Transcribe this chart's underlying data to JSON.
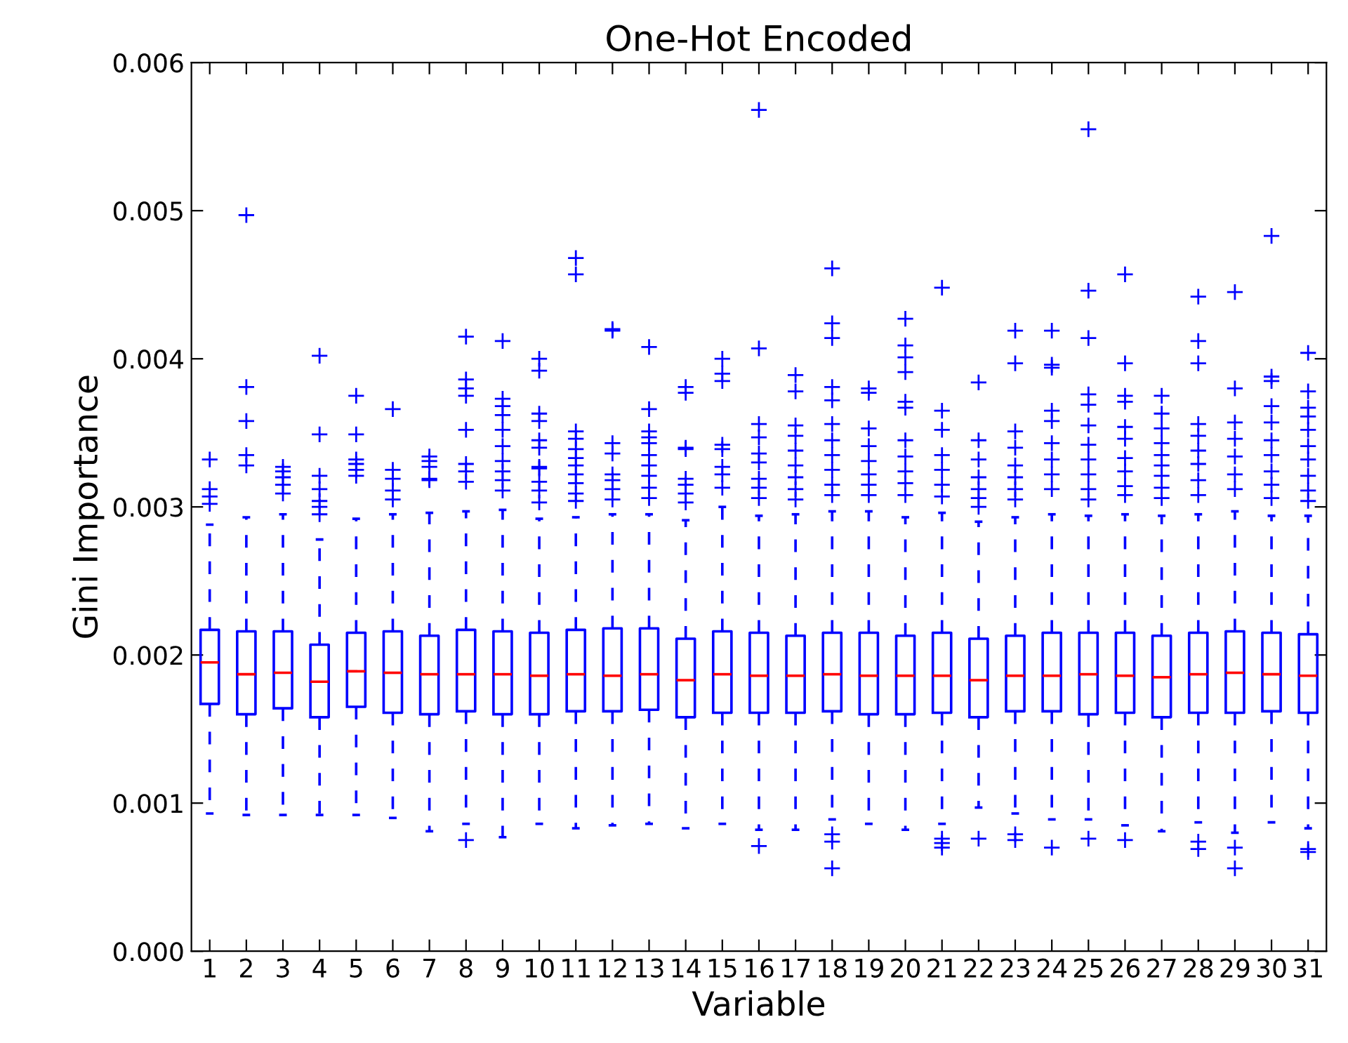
{
  "chart_data": {
    "type": "box",
    "title": "One-Hot Encoded",
    "xlabel": "Variable",
    "ylabel": "Gini Importance",
    "categories": [
      "1",
      "2",
      "3",
      "4",
      "5",
      "6",
      "7",
      "8",
      "9",
      "10",
      "11",
      "12",
      "13",
      "14",
      "15",
      "16",
      "17",
      "18",
      "19",
      "20",
      "21",
      "22",
      "23",
      "24",
      "25",
      "26",
      "27",
      "28",
      "29",
      "30",
      "31"
    ],
    "series": [
      {
        "color": "#0000ff",
        "boxes": [
          {
            "low": 0.00093,
            "q1": 0.00167,
            "median": 0.00195,
            "q3": 0.00217,
            "high": 0.00288,
            "outliers": [
              0.00332,
              0.00312,
              0.00307,
              0.00302
            ]
          },
          {
            "low": 0.00092,
            "q1": 0.0016,
            "median": 0.00187,
            "q3": 0.00216,
            "high": 0.00293,
            "outliers": [
              0.00497,
              0.00381,
              0.00358,
              0.00335,
              0.00328
            ]
          },
          {
            "low": 0.00092,
            "q1": 0.00164,
            "median": 0.00188,
            "q3": 0.00216,
            "high": 0.00295,
            "outliers": [
              0.00327,
              0.00324,
              0.0032,
              0.00315,
              0.00309
            ]
          },
          {
            "low": 0.00092,
            "q1": 0.00158,
            "median": 0.00182,
            "q3": 0.00207,
            "high": 0.00278,
            "outliers": [
              0.00402,
              0.00349,
              0.00321,
              0.00312,
              0.00304,
              0.003,
              0.00295
            ]
          },
          {
            "low": 0.00092,
            "q1": 0.00165,
            "median": 0.00189,
            "q3": 0.00215,
            "high": 0.00292,
            "outliers": [
              0.00375,
              0.00349,
              0.00332,
              0.00329,
              0.00325,
              0.00321
            ]
          },
          {
            "low": 0.0009,
            "q1": 0.00161,
            "median": 0.00188,
            "q3": 0.00216,
            "high": 0.00295,
            "outliers": [
              0.00366,
              0.00325,
              0.00319,
              0.00311,
              0.00305
            ]
          },
          {
            "low": 0.00081,
            "q1": 0.0016,
            "median": 0.00187,
            "q3": 0.00213,
            "high": 0.00296,
            "outliers": [
              0.00334,
              0.00331,
              0.00327,
              0.00319,
              0.00318
            ]
          },
          {
            "low": 0.00086,
            "q1": 0.00162,
            "median": 0.00187,
            "q3": 0.00217,
            "high": 0.00297,
            "outliers": [
              0.00415,
              0.00386,
              0.0038,
              0.00375,
              0.00352,
              0.00329,
              0.00324,
              0.00317,
              0.00075
            ]
          },
          {
            "low": 0.00077,
            "q1": 0.0016,
            "median": 0.00187,
            "q3": 0.00216,
            "high": 0.00298,
            "outliers": [
              0.00412,
              0.00373,
              0.00368,
              0.00362,
              0.00352,
              0.00341,
              0.00331,
              0.00324,
              0.00318,
              0.00311
            ]
          },
          {
            "low": 0.00086,
            "q1": 0.0016,
            "median": 0.00186,
            "q3": 0.00215,
            "high": 0.00292,
            "outliers": [
              0.004,
              0.00392,
              0.00363,
              0.00358,
              0.00345,
              0.0034,
              0.00327,
              0.00326,
              0.00317,
              0.00311,
              0.00303
            ]
          },
          {
            "low": 0.00083,
            "q1": 0.00162,
            "median": 0.00187,
            "q3": 0.00217,
            "high": 0.00293,
            "outliers": [
              0.00468,
              0.00457,
              0.00351,
              0.00346,
              0.00339,
              0.00333,
              0.00328,
              0.00322,
              0.00316,
              0.00309,
              0.00304
            ]
          },
          {
            "low": 0.00085,
            "q1": 0.00162,
            "median": 0.00186,
            "q3": 0.00218,
            "high": 0.00295,
            "outliers": [
              0.0042,
              0.00419,
              0.00343,
              0.00336,
              0.00322,
              0.00318,
              0.00312,
              0.00305
            ]
          },
          {
            "low": 0.00086,
            "q1": 0.00163,
            "median": 0.00187,
            "q3": 0.00218,
            "high": 0.00295,
            "outliers": [
              0.00408,
              0.00366,
              0.00351,
              0.00347,
              0.00343,
              0.00335,
              0.00328,
              0.00321,
              0.00313,
              0.00306
            ]
          },
          {
            "low": 0.00083,
            "q1": 0.00158,
            "median": 0.00183,
            "q3": 0.00211,
            "high": 0.00291,
            "outliers": [
              0.00381,
              0.00377,
              0.0034,
              0.00339,
              0.00319,
              0.00315,
              0.00309,
              0.00303
            ]
          },
          {
            "low": 0.00086,
            "q1": 0.00161,
            "median": 0.00187,
            "q3": 0.00216,
            "high": 0.003,
            "outliers": [
              0.004,
              0.0039,
              0.00385,
              0.00342,
              0.00339,
              0.00327,
              0.00322,
              0.00313
            ]
          },
          {
            "low": 0.00082,
            "q1": 0.00161,
            "median": 0.00186,
            "q3": 0.00215,
            "high": 0.00294,
            "outliers": [
              0.00568,
              0.00407,
              0.00356,
              0.00347,
              0.00336,
              0.0033,
              0.00319,
              0.00313,
              0.00306,
              0.00071
            ]
          },
          {
            "low": 0.00082,
            "q1": 0.00161,
            "median": 0.00186,
            "q3": 0.00213,
            "high": 0.00295,
            "outliers": [
              0.00389,
              0.00378,
              0.00355,
              0.00348,
              0.00338,
              0.00328,
              0.0032,
              0.00312,
              0.00305
            ]
          },
          {
            "low": 0.00089,
            "q1": 0.00162,
            "median": 0.00187,
            "q3": 0.00215,
            "high": 0.00297,
            "outliers": [
              0.00461,
              0.00424,
              0.00414,
              0.00381,
              0.00372,
              0.00356,
              0.00345,
              0.00335,
              0.00325,
              0.00315,
              0.00308,
              0.00079,
              0.00074,
              0.00056
            ]
          },
          {
            "low": 0.00086,
            "q1": 0.0016,
            "median": 0.00186,
            "q3": 0.00215,
            "high": 0.00297,
            "outliers": [
              0.0038,
              0.00377,
              0.00353,
              0.00341,
              0.00331,
              0.00322,
              0.00315,
              0.00308
            ]
          },
          {
            "low": 0.00082,
            "q1": 0.0016,
            "median": 0.00186,
            "q3": 0.00213,
            "high": 0.00293,
            "outliers": [
              0.00427,
              0.00409,
              0.00401,
              0.00391,
              0.00371,
              0.00367,
              0.00345,
              0.00334,
              0.00324,
              0.00316,
              0.00308
            ]
          },
          {
            "low": 0.00086,
            "q1": 0.00161,
            "median": 0.00186,
            "q3": 0.00215,
            "high": 0.00296,
            "outliers": [
              0.00448,
              0.00365,
              0.00352,
              0.00335,
              0.00325,
              0.00315,
              0.00307,
              0.00076,
              0.00073,
              0.0007
            ]
          },
          {
            "low": 0.00097,
            "q1": 0.00158,
            "median": 0.00183,
            "q3": 0.00211,
            "high": 0.0029,
            "outliers": [
              0.00384,
              0.00345,
              0.00332,
              0.0032,
              0.00312,
              0.00306,
              0.003,
              0.00076
            ]
          },
          {
            "low": 0.00093,
            "q1": 0.00162,
            "median": 0.00186,
            "q3": 0.00213,
            "high": 0.00293,
            "outliers": [
              0.00419,
              0.00397,
              0.00351,
              0.0034,
              0.00328,
              0.0032,
              0.00312,
              0.00305,
              0.00079,
              0.00075
            ]
          },
          {
            "low": 0.00089,
            "q1": 0.00162,
            "median": 0.00186,
            "q3": 0.00215,
            "high": 0.00295,
            "outliers": [
              0.00419,
              0.00396,
              0.00394,
              0.00365,
              0.00358,
              0.00343,
              0.00332,
              0.00322,
              0.00312,
              0.0007
            ]
          },
          {
            "low": 0.00089,
            "q1": 0.0016,
            "median": 0.00187,
            "q3": 0.00215,
            "high": 0.00294,
            "outliers": [
              0.00555,
              0.00446,
              0.00414,
              0.00376,
              0.00369,
              0.00355,
              0.00342,
              0.00332,
              0.00322,
              0.00312,
              0.00305,
              0.00076
            ]
          },
          {
            "low": 0.00085,
            "q1": 0.00161,
            "median": 0.00186,
            "q3": 0.00215,
            "high": 0.00295,
            "outliers": [
              0.00457,
              0.00397,
              0.00375,
              0.00371,
              0.00354,
              0.00346,
              0.00333,
              0.00324,
              0.00314,
              0.00308,
              0.00075
            ]
          },
          {
            "low": 0.00081,
            "q1": 0.00158,
            "median": 0.00185,
            "q3": 0.00213,
            "high": 0.00294,
            "outliers": [
              0.00375,
              0.00363,
              0.00353,
              0.00343,
              0.00335,
              0.00328,
              0.00321,
              0.00313,
              0.00306
            ]
          },
          {
            "low": 0.00087,
            "q1": 0.00161,
            "median": 0.00187,
            "q3": 0.00215,
            "high": 0.00295,
            "outliers": [
              0.00442,
              0.00412,
              0.00397,
              0.00356,
              0.00348,
              0.00338,
              0.00329,
              0.00318,
              0.00308,
              0.00074,
              0.00069
            ]
          },
          {
            "low": 0.0008,
            "q1": 0.00161,
            "median": 0.00188,
            "q3": 0.00216,
            "high": 0.00297,
            "outliers": [
              0.00445,
              0.0038,
              0.00357,
              0.00346,
              0.00334,
              0.00322,
              0.00312,
              0.0007,
              0.00056
            ]
          },
          {
            "low": 0.00087,
            "q1": 0.00162,
            "median": 0.00187,
            "q3": 0.00215,
            "high": 0.00294,
            "outliers": [
              0.00483,
              0.00388,
              0.00385,
              0.00368,
              0.00357,
              0.00345,
              0.00335,
              0.00324,
              0.00315,
              0.00306
            ]
          },
          {
            "low": 0.00083,
            "q1": 0.00161,
            "median": 0.00186,
            "q3": 0.00214,
            "high": 0.00294,
            "outliers": [
              0.00404,
              0.00378,
              0.00367,
              0.00361,
              0.00352,
              0.00341,
              0.00332,
              0.00321,
              0.00311,
              0.00304,
              0.00069,
              0.00067
            ]
          }
        ]
      }
    ],
    "ylim": [
      0,
      0.006
    ],
    "yticks": [
      {
        "value": 0,
        "label": "0.000"
      },
      {
        "value": 0.001,
        "label": "0.001"
      },
      {
        "value": 0.002,
        "label": "0.002"
      },
      {
        "value": 0.003,
        "label": "0.003"
      },
      {
        "value": 0.004,
        "label": "0.004"
      },
      {
        "value": 0.005,
        "label": "0.005"
      },
      {
        "value": 0.006,
        "label": "0.006"
      }
    ],
    "grid": false,
    "marker": "cross"
  }
}
